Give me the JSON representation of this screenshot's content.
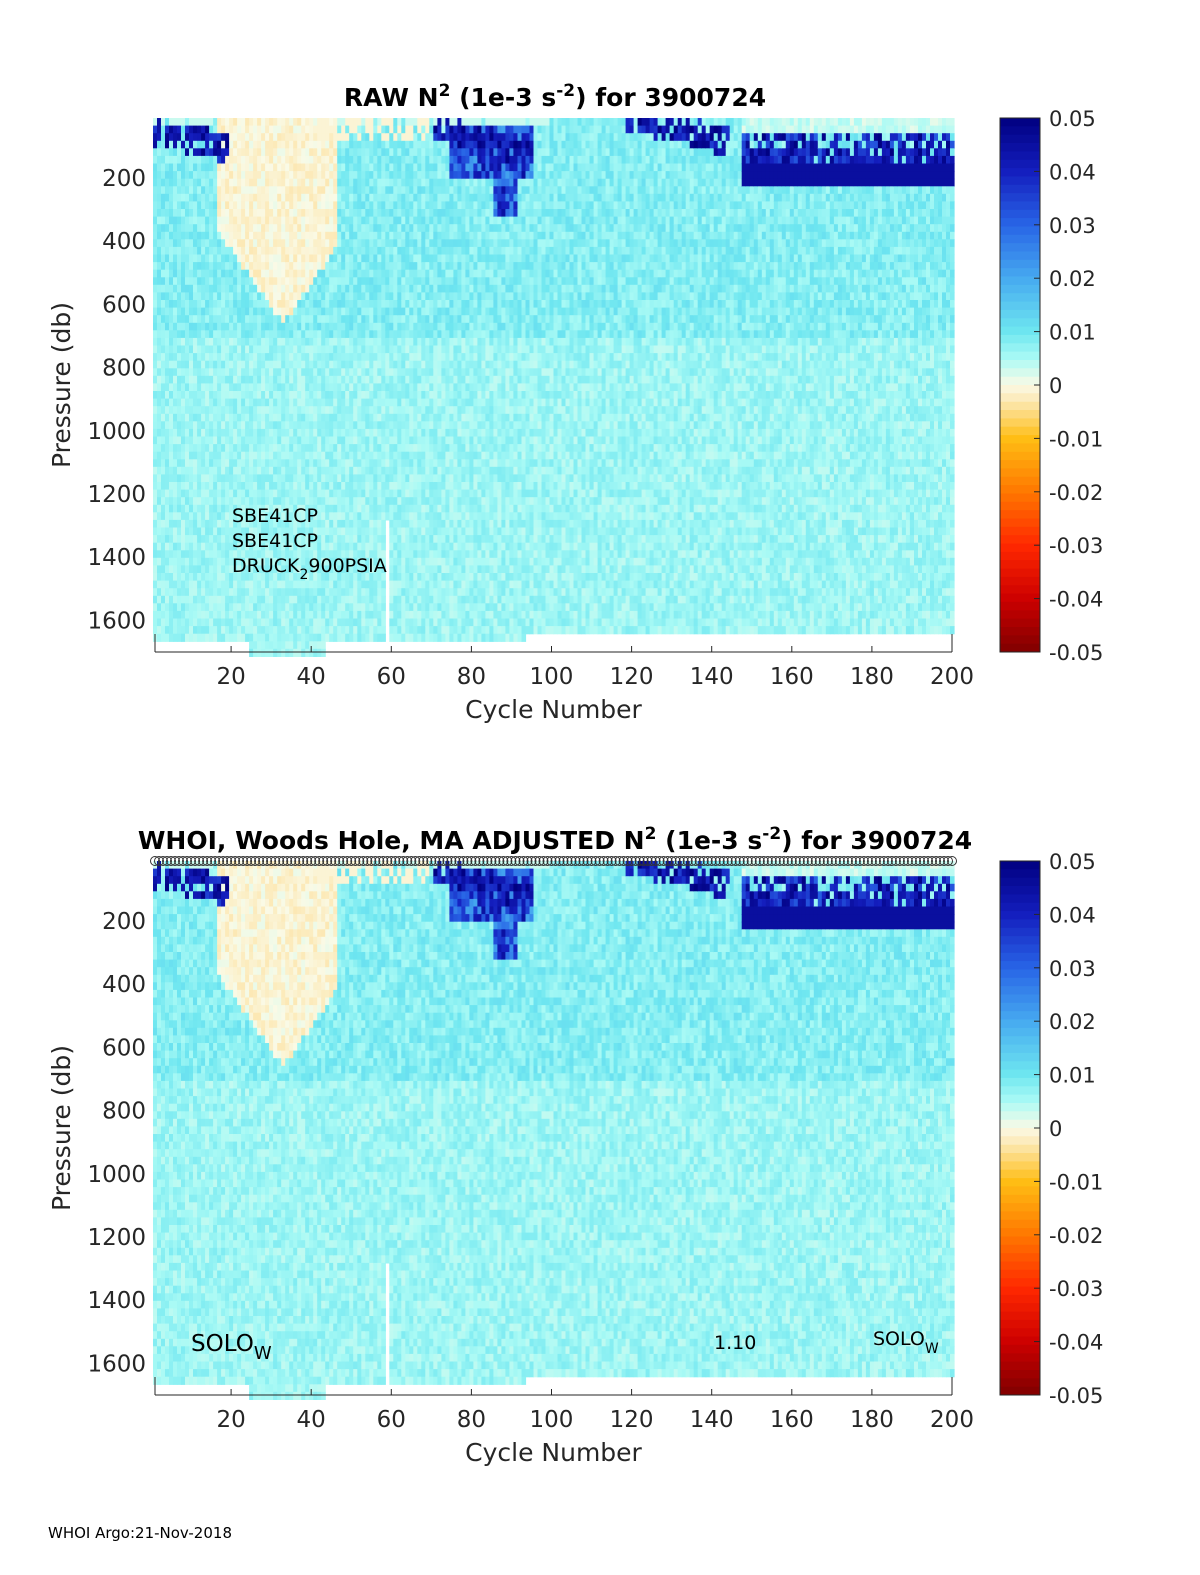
{
  "footer": "WHOI Argo:21-Nov-2018",
  "chart_data": [
    {
      "type": "heatmap",
      "title_parts": {
        "a": "RAW N",
        "sup1": "2",
        "b": " (1e-3 s",
        "sup2": "-2",
        "c": ") for 3900724"
      },
      "xlabel": "Cycle Number",
      "ylabel": "Pressure (db)",
      "xlim": [
        1,
        200
      ],
      "ylim": [
        1700,
        10
      ],
      "xticks": [
        20,
        40,
        60,
        80,
        100,
        120,
        140,
        160,
        180,
        200
      ],
      "yticks": [
        200,
        400,
        600,
        800,
        1000,
        1200,
        1400,
        1600
      ],
      "colorbar": {
        "range": [
          -0.05,
          0.05
        ],
        "ticks": [
          "0.05",
          "0.04",
          "0.03",
          "0.02",
          "0.01",
          "0",
          "-0.01",
          "-0.02",
          "-0.03",
          "-0.04",
          "-0.05"
        ]
      },
      "annotations": [
        {
          "text": "SBE41CP"
        },
        {
          "text": "SBE41CP"
        },
        {
          "text": "DRUCK",
          "sub": "2",
          "rest": "900PSIA"
        }
      ]
    },
    {
      "type": "heatmap",
      "title_parts": {
        "a": "WHOI, Woods Hole, MA  ADJUSTED N",
        "sup1": "2",
        "b": " (1e-3 s",
        "sup2": "-2",
        "c": ") for 3900724"
      },
      "xlabel": "Cycle Number",
      "ylabel": "Pressure (db)",
      "xlim": [
        1,
        200
      ],
      "ylim": [
        1700,
        10
      ],
      "xticks": [
        20,
        40,
        60,
        80,
        100,
        120,
        140,
        160,
        180,
        200
      ],
      "yticks": [
        200,
        400,
        600,
        800,
        1000,
        1200,
        1400,
        1600
      ],
      "colorbar": {
        "range": [
          -0.05,
          0.05
        ],
        "ticks": [
          "0.05",
          "0.04",
          "0.03",
          "0.02",
          "0.01",
          "0",
          "-0.01",
          "-0.02",
          "-0.03",
          "-0.04",
          "-0.05"
        ]
      },
      "annotations": [
        {
          "text": "SOLO",
          "sub": "W"
        },
        {
          "text": "1.10"
        },
        {
          "text": "SOLO",
          "sub": "W"
        }
      ],
      "marker_row": "circles along top axis for each cycle"
    }
  ]
}
